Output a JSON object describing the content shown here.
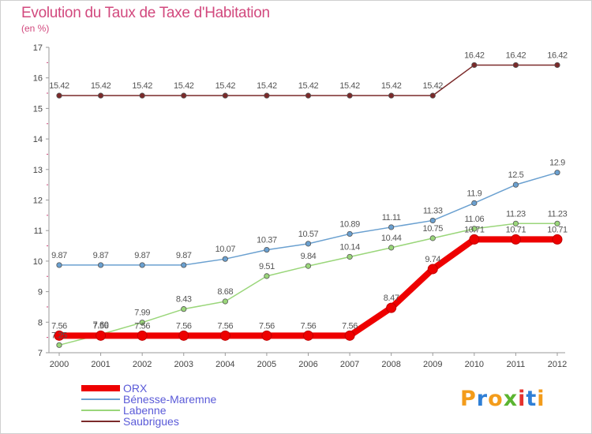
{
  "header": {
    "title": "Evolution du Taux de Taxe d'Habitation",
    "subtitle": "(en %)"
  },
  "logo": {
    "letters": [
      "P",
      "r",
      "o",
      "x",
      "i",
      "t",
      "i"
    ],
    "colors": [
      "#f39c1b",
      "#2f7fd6",
      "#f39c1b",
      "#5bb531",
      "#e5322d",
      "#2f7fd6",
      "#f39c1b"
    ]
  },
  "chart_data": {
    "type": "line",
    "title": "Evolution du Taux de Taxe d'Habitation",
    "ylabel": "(en %)",
    "xlabel": "",
    "x": [
      "2000",
      "2001",
      "2002",
      "2003",
      "2004",
      "2005",
      "2006",
      "2007",
      "2008",
      "2009",
      "2010",
      "2011",
      "2012"
    ],
    "ylim": [
      7,
      17
    ],
    "yticks": [
      "7",
      "8",
      "9",
      "10",
      "11",
      "12",
      "13",
      "14",
      "15",
      "16",
      "17"
    ],
    "grid": false,
    "legend": "bottom-left",
    "series": [
      {
        "name": "Saubrigues",
        "color": "#7b2a2a",
        "values": [
          15.42,
          15.42,
          15.42,
          15.42,
          15.42,
          15.42,
          15.42,
          15.42,
          15.42,
          15.42,
          16.42,
          16.42,
          16.42
        ],
        "labels": [
          "15.42",
          "15.42",
          "15.42",
          "15.42",
          "15.42",
          "15.42",
          "15.42",
          "15.42",
          "15.42",
          "15.42",
          "16.42",
          "16.42",
          "16.42"
        ]
      },
      {
        "name": "Bénesse-Maremne",
        "color": "#6aa0d0",
        "values": [
          9.87,
          9.87,
          9.87,
          9.87,
          10.07,
          10.37,
          10.57,
          10.89,
          11.11,
          11.33,
          11.9,
          12.5,
          12.9
        ],
        "labels": [
          "9.87",
          "9.87",
          "9.87",
          "9.87",
          "10.07",
          "10.37",
          "10.57",
          "10.89",
          "11.11",
          "11.33",
          "11.9",
          "12.5",
          "12.9"
        ]
      },
      {
        "name": "Labenne",
        "color": "#9ad67a",
        "values": [
          7.25,
          7.6,
          7.99,
          8.43,
          8.68,
          9.51,
          9.84,
          10.14,
          10.44,
          10.75,
          11.06,
          11.23,
          11.23
        ],
        "labels": [
          "7.25",
          "7.60",
          "7.99",
          "8.43",
          "8.68",
          "9.51",
          "9.84",
          "10.14",
          "10.44",
          "10.75",
          "11.06",
          "11.23",
          "11.23"
        ]
      },
      {
        "name": "ORX",
        "color": "#ee0000",
        "values": [
          7.56,
          7.56,
          7.56,
          7.56,
          7.56,
          7.56,
          7.56,
          7.56,
          8.47,
          9.74,
          10.71,
          10.71,
          10.71
        ],
        "labels": [
          "7.56",
          "7.56",
          "7.56",
          "7.56",
          "7.56",
          "7.56",
          "7.56",
          "7.56",
          "8.47",
          "9.74",
          "10.71",
          "10.71",
          "10.71"
        ]
      }
    ],
    "legend_order": [
      "ORX",
      "Bénesse-Maremne",
      "Labenne",
      "Saubrigues"
    ]
  }
}
